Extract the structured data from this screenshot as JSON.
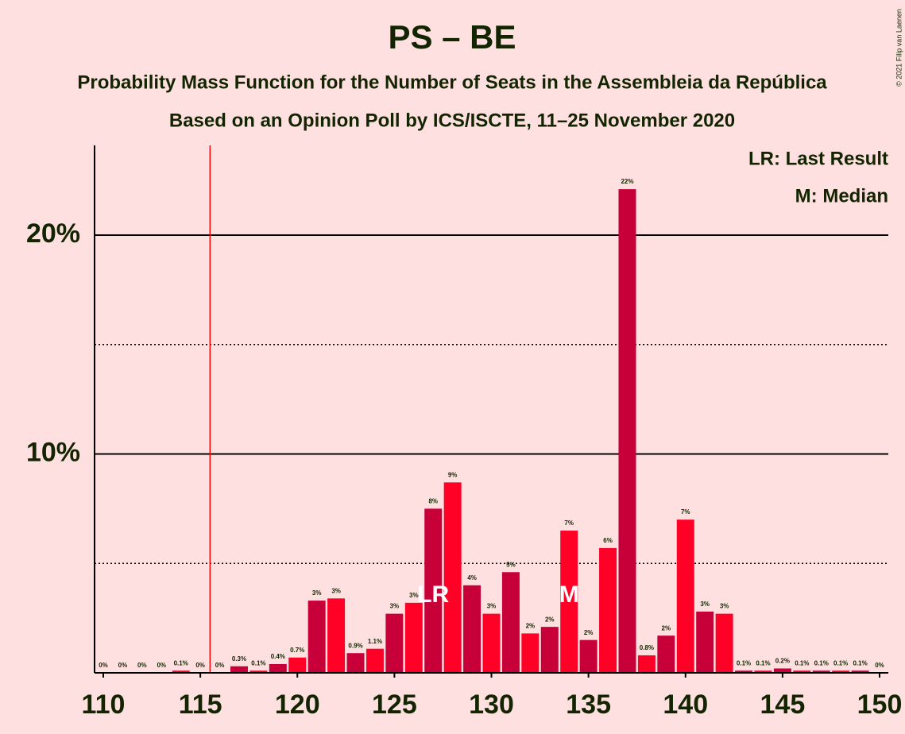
{
  "chart_data": {
    "type": "bar",
    "title": "PS – BE",
    "subtitle": "Probability Mass Function for the Number of Seats in the Assembleia da República",
    "subtitle2": "Based on an Opinion Poll by ICS/ISCTE, 11–25 November 2020",
    "copyright": "© 2021 Filip van Laenen",
    "legend": [
      "LR: Last Result",
      "M: Median"
    ],
    "categories": [
      110,
      111,
      112,
      113,
      114,
      115,
      116,
      117,
      118,
      119,
      120,
      121,
      122,
      123,
      124,
      125,
      126,
      127,
      128,
      129,
      130,
      131,
      132,
      133,
      134,
      135,
      136,
      137,
      138,
      139,
      140,
      141,
      142,
      143,
      144,
      145,
      146,
      147,
      148,
      149,
      150
    ],
    "values": [
      0,
      0,
      0,
      0,
      0.1,
      0,
      0,
      0.3,
      0.1,
      0.4,
      0.7,
      3.3,
      3.4,
      0.9,
      1.1,
      2.7,
      3.2,
      7.5,
      8.7,
      4.0,
      2.7,
      4.6,
      1.8,
      2.1,
      6.5,
      1.5,
      5.7,
      22.1,
      0.8,
      1.7,
      7.0,
      2.8,
      2.7,
      0.1,
      0.1,
      0.2,
      0.1,
      0.1,
      0.1,
      0.1,
      0
    ],
    "value_labels": [
      "0%",
      "0%",
      "0%",
      "0%",
      "0.1%",
      "0%",
      "0%",
      "0.3%",
      "0.1%",
      "0.4%",
      "0.7%",
      "3%",
      "3%",
      "0.9%",
      "1.1%",
      "3%",
      "3%",
      "8%",
      "9%",
      "4%",
      "3%",
      "5%",
      "2%",
      "2%",
      "7%",
      "2%",
      "6%",
      "22%",
      "0.8%",
      "2%",
      "7%",
      "3%",
      "3%",
      "0.1%",
      "0.1%",
      "0.2%",
      "0.1%",
      "0.1%",
      "0.1%",
      "0.1%",
      "0%"
    ],
    "colors": [
      "#ff0026",
      "#c8003a"
    ],
    "xlim": [
      109.55,
      150.45
    ],
    "xticks": [
      110,
      115,
      120,
      125,
      130,
      135,
      140,
      145,
      150
    ],
    "ylim": [
      0,
      24.1
    ],
    "yticks": [
      {
        "value": 10,
        "label": "10%"
      },
      {
        "value": 20,
        "label": "20%"
      }
    ],
    "minor_yticks": [
      5,
      15
    ],
    "threshold": 115.5,
    "threshold_color": "#ff0000",
    "markers": [
      {
        "x": 127,
        "label": "LR"
      },
      {
        "x": 134,
        "label": "M"
      }
    ]
  }
}
